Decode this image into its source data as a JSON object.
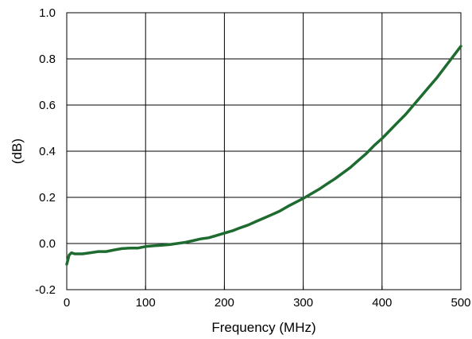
{
  "chart_data": {
    "type": "line",
    "title": "",
    "xlabel": "Frequency (MHz)",
    "ylabel": "(dB)",
    "xlim": [
      0,
      500
    ],
    "ylim": [
      -0.2,
      1.0
    ],
    "xticks": [
      0,
      100,
      200,
      300,
      400,
      500
    ],
    "yticks": [
      -0.2,
      0.0,
      0.2,
      0.4,
      0.6,
      0.8,
      1.0
    ],
    "xtick_labels": [
      "0",
      "100",
      "200",
      "300",
      "400",
      "500"
    ],
    "ytick_labels": [
      "-0.2",
      "0.0",
      "0.2",
      "0.4",
      "0.6",
      "0.8",
      "1.0"
    ],
    "grid": true,
    "series": [
      {
        "color": "#1e6b30",
        "x": [
          0,
          3,
          6,
          10,
          20,
          30,
          40,
          50,
          60,
          70,
          80,
          90,
          100,
          110,
          120,
          130,
          140,
          150,
          160,
          170,
          180,
          190,
          200,
          210,
          220,
          230,
          240,
          250,
          260,
          270,
          280,
          290,
          300,
          310,
          320,
          330,
          340,
          350,
          360,
          370,
          380,
          390,
          400,
          410,
          420,
          430,
          440,
          450,
          460,
          470,
          480,
          490,
          500
        ],
        "y": [
          -0.09,
          -0.05,
          -0.04,
          -0.045,
          -0.045,
          -0.04,
          -0.035,
          -0.035,
          -0.028,
          -0.022,
          -0.02,
          -0.02,
          -0.013,
          -0.01,
          -0.008,
          -0.005,
          0.0,
          0.005,
          0.012,
          0.02,
          0.025,
          0.035,
          0.045,
          0.055,
          0.068,
          0.08,
          0.095,
          0.11,
          0.125,
          0.14,
          0.16,
          0.178,
          0.195,
          0.215,
          0.235,
          0.258,
          0.28,
          0.305,
          0.33,
          0.36,
          0.39,
          0.425,
          0.455,
          0.49,
          0.525,
          0.56,
          0.6,
          0.64,
          0.68,
          0.72,
          0.765,
          0.81,
          0.855
        ]
      }
    ]
  }
}
